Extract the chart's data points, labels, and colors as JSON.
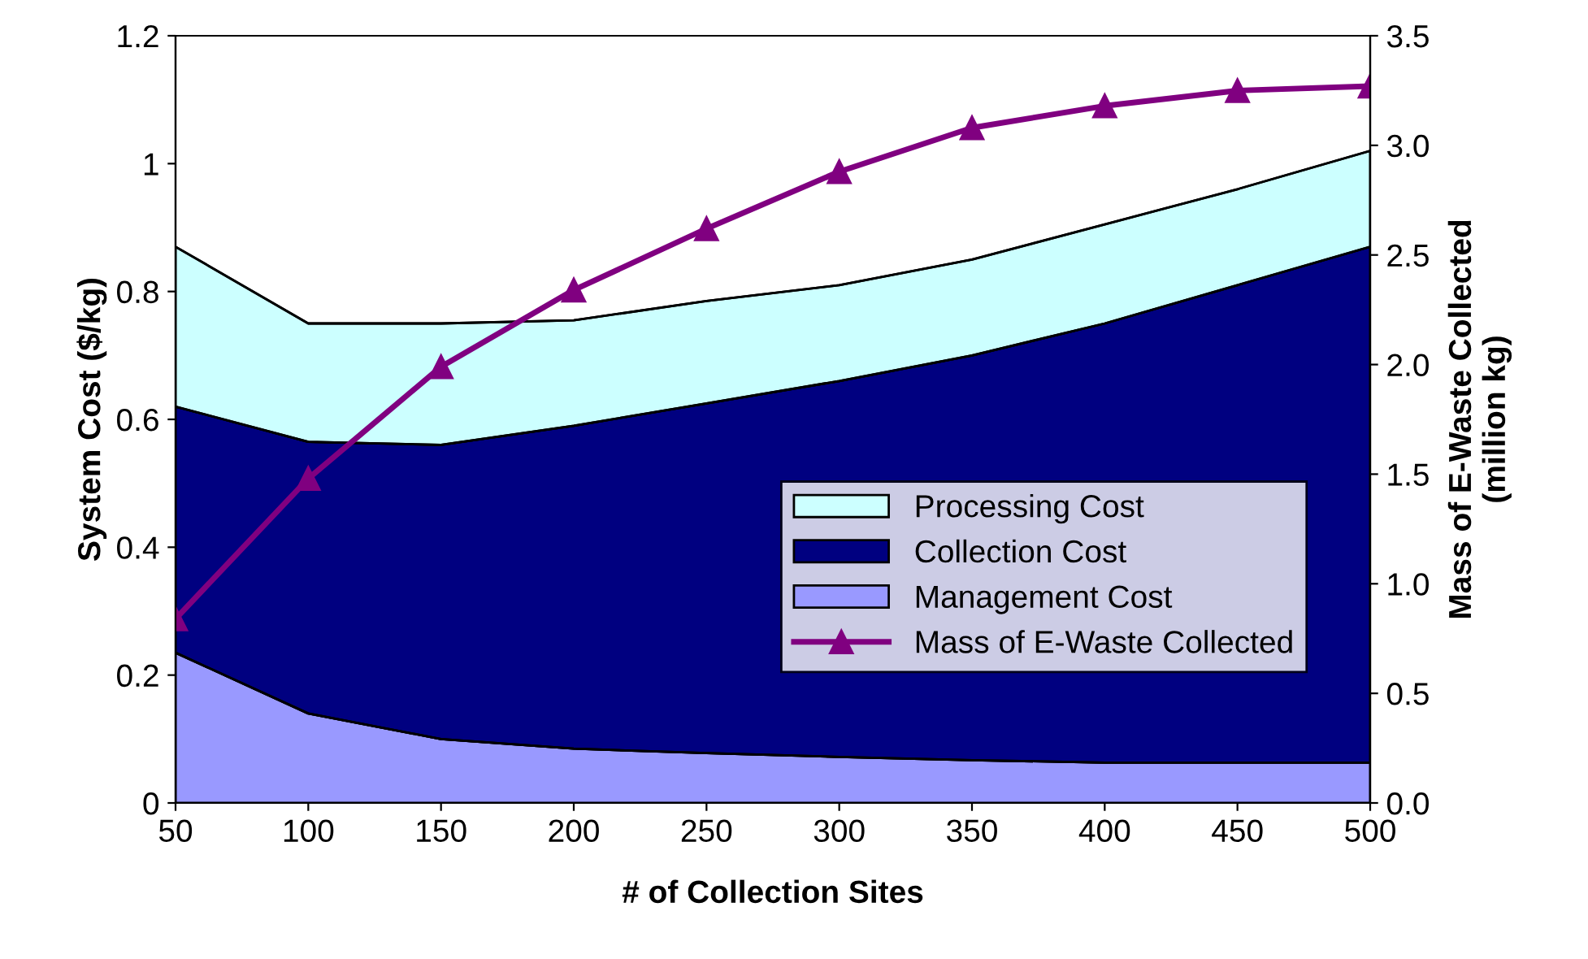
{
  "chart_data": {
    "type": "area",
    "stacked": true,
    "xlabel": "# of Collection Sites",
    "ylabel": "System Cost ($/kg)",
    "y2label": "Mass of E-Waste Collected\n(million kg)",
    "x": [
      50,
      100,
      150,
      200,
      250,
      300,
      350,
      400,
      450,
      500
    ],
    "xlim": [
      50,
      500
    ],
    "xticks": [
      50,
      100,
      150,
      200,
      250,
      300,
      350,
      400,
      450,
      500
    ],
    "ylim": [
      0,
      1.2
    ],
    "yticks": [
      0,
      0.2,
      0.4,
      0.6,
      0.8,
      1,
      1.2
    ],
    "y2lim": [
      0,
      3.5
    ],
    "y2ticks": [
      {
        "value": 0,
        "label": "0.0"
      },
      0.5,
      {
        "value": 1,
        "label": "1.0"
      },
      1.5,
      {
        "value": 2,
        "label": "2.0"
      },
      2.5,
      {
        "value": 3,
        "label": "3.0"
      },
      3.5
    ],
    "grid": false,
    "legend": "lower right",
    "series": [
      {
        "name": "Management Cost",
        "color": "#9999ff",
        "values": [
          0.235,
          0.14,
          0.1,
          0.085,
          0.078,
          0.072,
          0.067,
          0.063,
          0.063,
          0.063
        ]
      },
      {
        "name": "Collection Cost",
        "color": "#000080",
        "values": [
          0.385,
          0.425,
          0.46,
          0.505,
          0.547,
          0.588,
          0.633,
          0.687,
          0.747,
          0.807
        ]
      },
      {
        "name": "Processing Cost",
        "color": "#ccffff",
        "values": [
          0.25,
          0.185,
          0.19,
          0.165,
          0.16,
          0.15,
          0.15,
          0.155,
          0.15,
          0.15
        ]
      },
      {
        "name": "Mass of E-Waste Collected",
        "type": "line",
        "axis": "y2",
        "color": "#800080",
        "marker": "triangle",
        "line_style": "solid",
        "values": [
          0.84,
          1.48,
          1.99,
          2.34,
          2.62,
          2.88,
          3.08,
          3.18,
          3.25,
          3.27
        ]
      }
    ]
  }
}
